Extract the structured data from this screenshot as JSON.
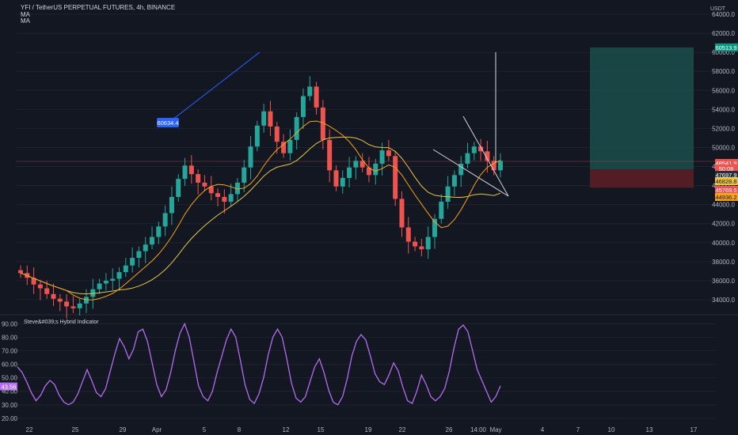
{
  "header": {
    "title": "YFI / TetherUS PERPETUAL FUTURES, 4h, BINANCE",
    "ma1": "MA",
    "ma2": "MA",
    "currency": "USDT"
  },
  "indicator": {
    "title": "Steve&#039;s Hybrid Indicator"
  },
  "colors": {
    "background": "#131722",
    "bull": "#26a69a",
    "bear": "#ef5350",
    "ma_orange": "#f7a21b",
    "ma_yellow": "#e8c547",
    "oscillator": "#b36cf0",
    "profit_zone": "#1b4d4b",
    "loss_zone": "#5a1e26",
    "annotation_blue": "#2962ff"
  },
  "chart_data": [
    {
      "type": "candlestick",
      "y_ticks": [
        "64000.0",
        "62000.0",
        "60000.0",
        "58000.0",
        "56000.0",
        "54000.0",
        "52000.0",
        "50000.0",
        "48000.0",
        "46000.0",
        "44000.0",
        "42000.0",
        "40000.0",
        "38000.0",
        "36000.0",
        "34000.0"
      ],
      "ylim": [
        32500,
        65500
      ],
      "x_ticks": [
        "22",
        "25",
        "29",
        "Apr",
        "5",
        "8",
        "12",
        "15",
        "19",
        "22",
        "26",
        "14:00",
        "May",
        "4",
        "7",
        "10",
        "13",
        "17"
      ],
      "series_close": [
        36800,
        36300,
        35600,
        35200,
        34600,
        34100,
        33800,
        33300,
        33100,
        33600,
        34300,
        35100,
        35700,
        36000,
        36200,
        36900,
        37600,
        38400,
        39100,
        39800,
        40600,
        41700,
        43100,
        44800,
        46700,
        48100,
        47200,
        46300,
        45900,
        45200,
        44800,
        44300,
        45100,
        46300,
        47900,
        50100,
        52300,
        53800,
        52200,
        50600,
        49400,
        50800,
        53200,
        55400,
        56400,
        54200,
        50800,
        47600,
        45900,
        46800,
        47900,
        48600,
        47900,
        47100,
        48300,
        49700,
        49100,
        44600,
        41600,
        40100,
        39600,
        39300,
        40600,
        42500,
        44300,
        45900,
        47100,
        48300,
        49400,
        50100,
        49600,
        48600,
        47600,
        48600
      ],
      "horizontal_levels": [
        {
          "label": "60513.9",
          "value": 60513.9,
          "color": "#089981"
        },
        {
          "label": "48541.9",
          "value": 48541.9,
          "color": "#ef5350"
        },
        {
          "label": "50:08",
          "value": 48000,
          "color": "#ef5350"
        },
        {
          "label": "47697.9",
          "value": 47697.9,
          "color": "#2a2e39"
        },
        {
          "label": "46828.8",
          "value": 46828.8,
          "color": "#e8c547"
        },
        {
          "label": "45769.5",
          "value": 45769.5,
          "color": "#ef5350"
        },
        {
          "label": "44936.2",
          "value": 44936.2,
          "color": "#f7a21b"
        }
      ],
      "annotation_label": "60634.4"
    },
    {
      "type": "line",
      "title": "Steve&#039;s Hybrid Indicator",
      "y_ticks": [
        "90.00",
        "80.00",
        "70.00",
        "60.00",
        "50.00",
        "40.00",
        "30.00",
        "20.00"
      ],
      "ylim": [
        17,
        96
      ],
      "current_value": "43.56",
      "values": [
        58,
        54,
        47,
        39,
        33,
        37,
        44,
        48,
        45,
        37,
        32,
        30,
        32,
        38,
        47,
        56,
        48,
        39,
        36,
        42,
        55,
        68,
        79,
        73,
        64,
        71,
        84,
        86,
        77,
        61,
        45,
        36,
        41,
        54,
        70,
        83,
        90,
        80,
        62,
        44,
        36,
        33,
        40,
        54,
        66,
        78,
        86,
        80,
        63,
        45,
        34,
        31,
        38,
        50,
        67,
        80,
        86,
        80,
        64,
        46,
        35,
        32,
        36,
        47,
        58,
        64,
        54,
        41,
        32,
        30,
        36,
        49,
        66,
        77,
        82,
        78,
        66,
        53,
        47,
        45,
        52,
        61,
        55,
        43,
        33,
        31,
        40,
        52,
        45,
        36,
        33,
        36,
        42,
        55,
        72,
        86,
        89,
        84,
        70,
        56,
        48,
        40,
        32,
        36,
        44
      ]
    }
  ]
}
